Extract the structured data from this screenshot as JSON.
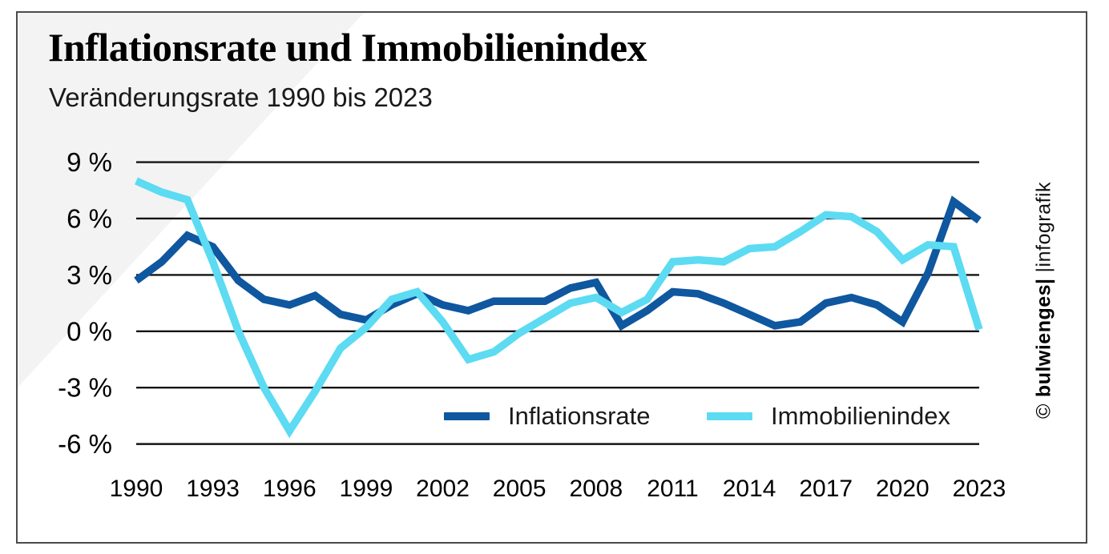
{
  "header": {
    "title": "Inflationsrate und Immobilienindex",
    "subtitle": "Veränderungsrate 1990 bis 2023"
  },
  "watermark": {
    "copyright": "©",
    "brand": "bulwienges|",
    "suffix": "|infografik"
  },
  "colors": {
    "inflation_blue": "#0f579f",
    "immobilien_cyan": "#5cdbf2",
    "gridline": "#141414",
    "wedge_gray": "#f3f3f4",
    "card_border": "#4b4b4b"
  },
  "chart_data": {
    "type": "line",
    "title": "Inflationsrate und Immobilienindex",
    "subtitle": "Veränderungsrate 1990 bis 2023",
    "xlabel": "",
    "ylabel": "",
    "unit": "%",
    "grid": "horizontal",
    "legend_position": "inside-bottom",
    "ylim": [
      -7,
      10
    ],
    "x": [
      1990,
      1991,
      1992,
      1993,
      1994,
      1995,
      1996,
      1997,
      1998,
      1999,
      2000,
      2001,
      2002,
      2003,
      2004,
      2005,
      2006,
      2007,
      2008,
      2009,
      2010,
      2011,
      2012,
      2013,
      2014,
      2015,
      2016,
      2017,
      2018,
      2019,
      2020,
      2021,
      2022,
      2023
    ],
    "series": [
      {
        "name": "Inflationsrate",
        "color": "#0f579f",
        "values": [
          2.7,
          3.7,
          5.1,
          4.5,
          2.7,
          1.7,
          1.4,
          1.9,
          0.9,
          0.6,
          1.4,
          2.0,
          1.4,
          1.1,
          1.6,
          1.6,
          1.6,
          2.3,
          2.6,
          0.3,
          1.1,
          2.1,
          2.0,
          1.5,
          0.9,
          0.3,
          0.5,
          1.5,
          1.8,
          1.4,
          0.5,
          3.1,
          6.9,
          5.9
        ]
      },
      {
        "name": "Immobilienindex",
        "color": "#5cdbf2",
        "values": [
          8.0,
          7.4,
          7.0,
          3.7,
          0.0,
          -3.0,
          -5.3,
          -3.2,
          -0.9,
          0.2,
          1.7,
          2.1,
          0.5,
          -1.5,
          -1.1,
          -0.1,
          0.7,
          1.5,
          1.8,
          1.0,
          1.7,
          3.7,
          3.8,
          3.7,
          4.4,
          4.5,
          5.3,
          6.2,
          6.1,
          5.3,
          3.8,
          4.6,
          4.5,
          0.1
        ]
      }
    ],
    "yticks": [
      {
        "value": 9,
        "label": "9 %"
      },
      {
        "value": 6,
        "label": "6 %"
      },
      {
        "value": 3,
        "label": "3 %"
      },
      {
        "value": 0,
        "label": "0 %"
      },
      {
        "value": -3,
        "label": "-3 %"
      },
      {
        "value": -6,
        "label": "-6 %"
      }
    ],
    "xticks": [
      {
        "value": 1990,
        "label": "1990"
      },
      {
        "value": 1993,
        "label": "1993"
      },
      {
        "value": 1996,
        "label": "1996"
      },
      {
        "value": 1999,
        "label": "1999"
      },
      {
        "value": 2002,
        "label": "2002"
      },
      {
        "value": 2005,
        "label": "2005"
      },
      {
        "value": 2008,
        "label": "2008"
      },
      {
        "value": 2011,
        "label": "2011"
      },
      {
        "value": 2014,
        "label": "2014"
      },
      {
        "value": 2017,
        "label": "2017"
      },
      {
        "value": 2020,
        "label": "2020"
      },
      {
        "value": 2023,
        "label": "2023"
      }
    ]
  }
}
